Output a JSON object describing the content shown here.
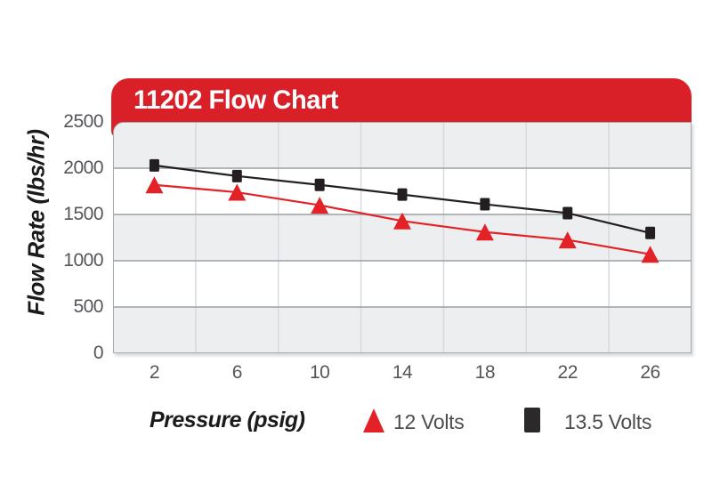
{
  "header": {
    "title": "11202 Flow Chart",
    "background_color": "#D92028",
    "text_color": "#FFFFFF"
  },
  "chart_data": {
    "type": "line",
    "title": "11202 Flow Chart",
    "categories": [
      2,
      6,
      10,
      14,
      18,
      22,
      26
    ],
    "xlabel": "Pressure (psig)",
    "ylabel": "Flow Rate (lbs/hr)",
    "ylim": [
      0,
      2500
    ],
    "y_ticks": [
      0,
      500,
      1000,
      1500,
      2000,
      2500
    ],
    "grid": "horizontal lines at 500 intervals, vertical separators between categories, alternating row bands",
    "legend_position": "bottom",
    "colors": {
      "band_gray": "#ECEEF0",
      "band_white": "#FFFFFF",
      "grid_major": "#A7ABAF",
      "grid_vertical": "#D8DADD"
    },
    "series": [
      {
        "name": "12 Volts",
        "marker": "triangle",
        "color": "#E32227",
        "values": [
          1820,
          1740,
          1600,
          1430,
          1310,
          1225,
          1070
        ]
      },
      {
        "name": "13.5 Volts",
        "marker": "square",
        "color": "#231F20",
        "values": [
          2030,
          1915,
          1820,
          1715,
          1610,
          1515,
          1300
        ]
      }
    ]
  }
}
